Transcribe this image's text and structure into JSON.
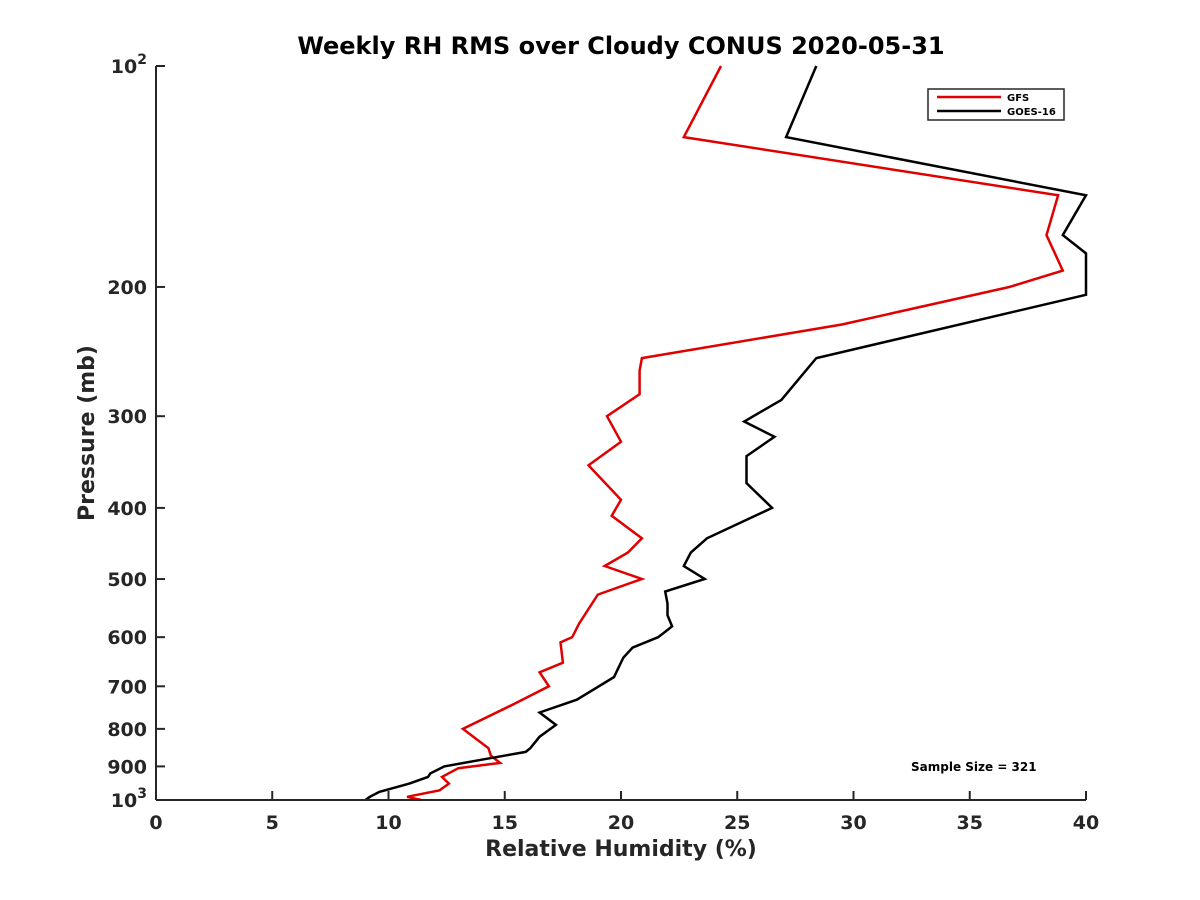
{
  "chart_data": {
    "type": "line",
    "title": "Weekly RH RMS over Cloudy CONUS 2020-05-31",
    "xlabel": "Relative Humidity (%)",
    "ylabel": "Pressure (mb)",
    "xlim": [
      0,
      40
    ],
    "ylim": [
      100,
      1000
    ],
    "y_scale": "log",
    "y_reversed": true,
    "grid": false,
    "legend_position": "top-right",
    "annotation": "Sample Size = 321",
    "x_ticks": [
      {
        "value": 0,
        "label": "0"
      },
      {
        "value": 5,
        "label": "5"
      },
      {
        "value": 10,
        "label": "10"
      },
      {
        "value": 15,
        "label": "15"
      },
      {
        "value": 20,
        "label": "20"
      },
      {
        "value": 25,
        "label": "25"
      },
      {
        "value": 30,
        "label": "30"
      },
      {
        "value": 35,
        "label": "35"
      },
      {
        "value": 40,
        "label": "40"
      }
    ],
    "y_ticks": [
      {
        "value": 100,
        "label": "",
        "base": "10",
        "exp": "2"
      },
      {
        "value": 200,
        "label": "200"
      },
      {
        "value": 300,
        "label": "300"
      },
      {
        "value": 400,
        "label": "400"
      },
      {
        "value": 500,
        "label": "500"
      },
      {
        "value": 600,
        "label": "600"
      },
      {
        "value": 700,
        "label": "700"
      },
      {
        "value": 800,
        "label": "800"
      },
      {
        "value": 900,
        "label": "900"
      },
      {
        "value": 1000,
        "label": "",
        "base": "10",
        "exp": "3"
      }
    ],
    "series": [
      {
        "name": "GFS",
        "color": "#e00000",
        "points": [
          [
            24.3,
            100
          ],
          [
            22.7,
            125
          ],
          [
            38.8,
            150
          ],
          [
            38.3,
            170
          ],
          [
            39.0,
            190
          ],
          [
            36.7,
            200
          ],
          [
            29.5,
            225
          ],
          [
            20.9,
            250
          ],
          [
            20.8,
            260
          ],
          [
            20.8,
            280
          ],
          [
            19.4,
            300
          ],
          [
            20.0,
            325
          ],
          [
            18.6,
            350
          ],
          [
            20.0,
            390
          ],
          [
            19.6,
            410
          ],
          [
            20.9,
            440
          ],
          [
            20.3,
            460
          ],
          [
            19.3,
            480
          ],
          [
            20.9,
            500
          ],
          [
            19.0,
            525
          ],
          [
            18.2,
            575
          ],
          [
            17.9,
            600
          ],
          [
            17.4,
            610
          ],
          [
            17.5,
            650
          ],
          [
            16.5,
            670
          ],
          [
            16.9,
            700
          ],
          [
            15.4,
            740
          ],
          [
            13.2,
            800
          ],
          [
            14.3,
            850
          ],
          [
            14.4,
            870
          ],
          [
            14.8,
            890
          ],
          [
            13.0,
            905
          ],
          [
            12.3,
            930
          ],
          [
            12.6,
            950
          ],
          [
            12.2,
            970
          ],
          [
            10.8,
            990
          ],
          [
            11.4,
            1000
          ]
        ]
      },
      {
        "name": "GOES-16",
        "color": "#000000",
        "points": [
          [
            28.4,
            100
          ],
          [
            27.1,
            125
          ],
          [
            40.0,
            150
          ],
          [
            39.0,
            170
          ],
          [
            40.0,
            180
          ],
          [
            40.0,
            205
          ],
          [
            28.4,
            250
          ],
          [
            26.9,
            285
          ],
          [
            25.3,
            305
          ],
          [
            26.6,
            320
          ],
          [
            25.4,
            340
          ],
          [
            25.4,
            370
          ],
          [
            26.5,
            400
          ],
          [
            23.7,
            440
          ],
          [
            23.0,
            460
          ],
          [
            22.7,
            480
          ],
          [
            23.6,
            500
          ],
          [
            21.9,
            520
          ],
          [
            22.0,
            540
          ],
          [
            22.0,
            560
          ],
          [
            22.2,
            580
          ],
          [
            21.6,
            600
          ],
          [
            20.5,
            620
          ],
          [
            20.1,
            640
          ],
          [
            19.7,
            680
          ],
          [
            18.1,
            730
          ],
          [
            16.5,
            760
          ],
          [
            17.2,
            790
          ],
          [
            16.5,
            820
          ],
          [
            16.1,
            850
          ],
          [
            15.9,
            860
          ],
          [
            14.1,
            880
          ],
          [
            12.4,
            900
          ],
          [
            11.8,
            920
          ],
          [
            11.7,
            930
          ],
          [
            10.9,
            950
          ],
          [
            9.6,
            975
          ],
          [
            9.2,
            990
          ],
          [
            9.0,
            1000
          ]
        ]
      }
    ]
  }
}
